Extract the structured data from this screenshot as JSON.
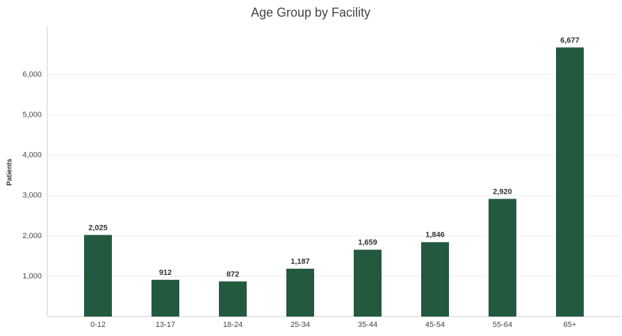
{
  "chart_data": {
    "type": "bar",
    "title": "Age Group by Facility",
    "y_label": "Patients",
    "categories": [
      "0-12",
      "13-17",
      "18-24",
      "25-34",
      "35-44",
      "45-54",
      "55-64",
      "65+"
    ],
    "values": [
      2025,
      912,
      872,
      1187,
      1659,
      1846,
      2920,
      6677
    ],
    "value_labels": [
      "2,025",
      "912",
      "872",
      "1,187",
      "1,659",
      "1,846",
      "2,920",
      "6,677"
    ],
    "color": "#235a3f",
    "ylim": [
      0,
      7200
    ],
    "yticks": [
      {
        "value": 1000,
        "label": "1,000"
      },
      {
        "value": 2000,
        "label": "2,000"
      },
      {
        "value": 3000,
        "label": "3,000"
      },
      {
        "value": 4000,
        "label": "4,000"
      },
      {
        "value": 5000,
        "label": "5,000"
      },
      {
        "value": 6000,
        "label": "6,000"
      }
    ],
    "grid": true
  }
}
